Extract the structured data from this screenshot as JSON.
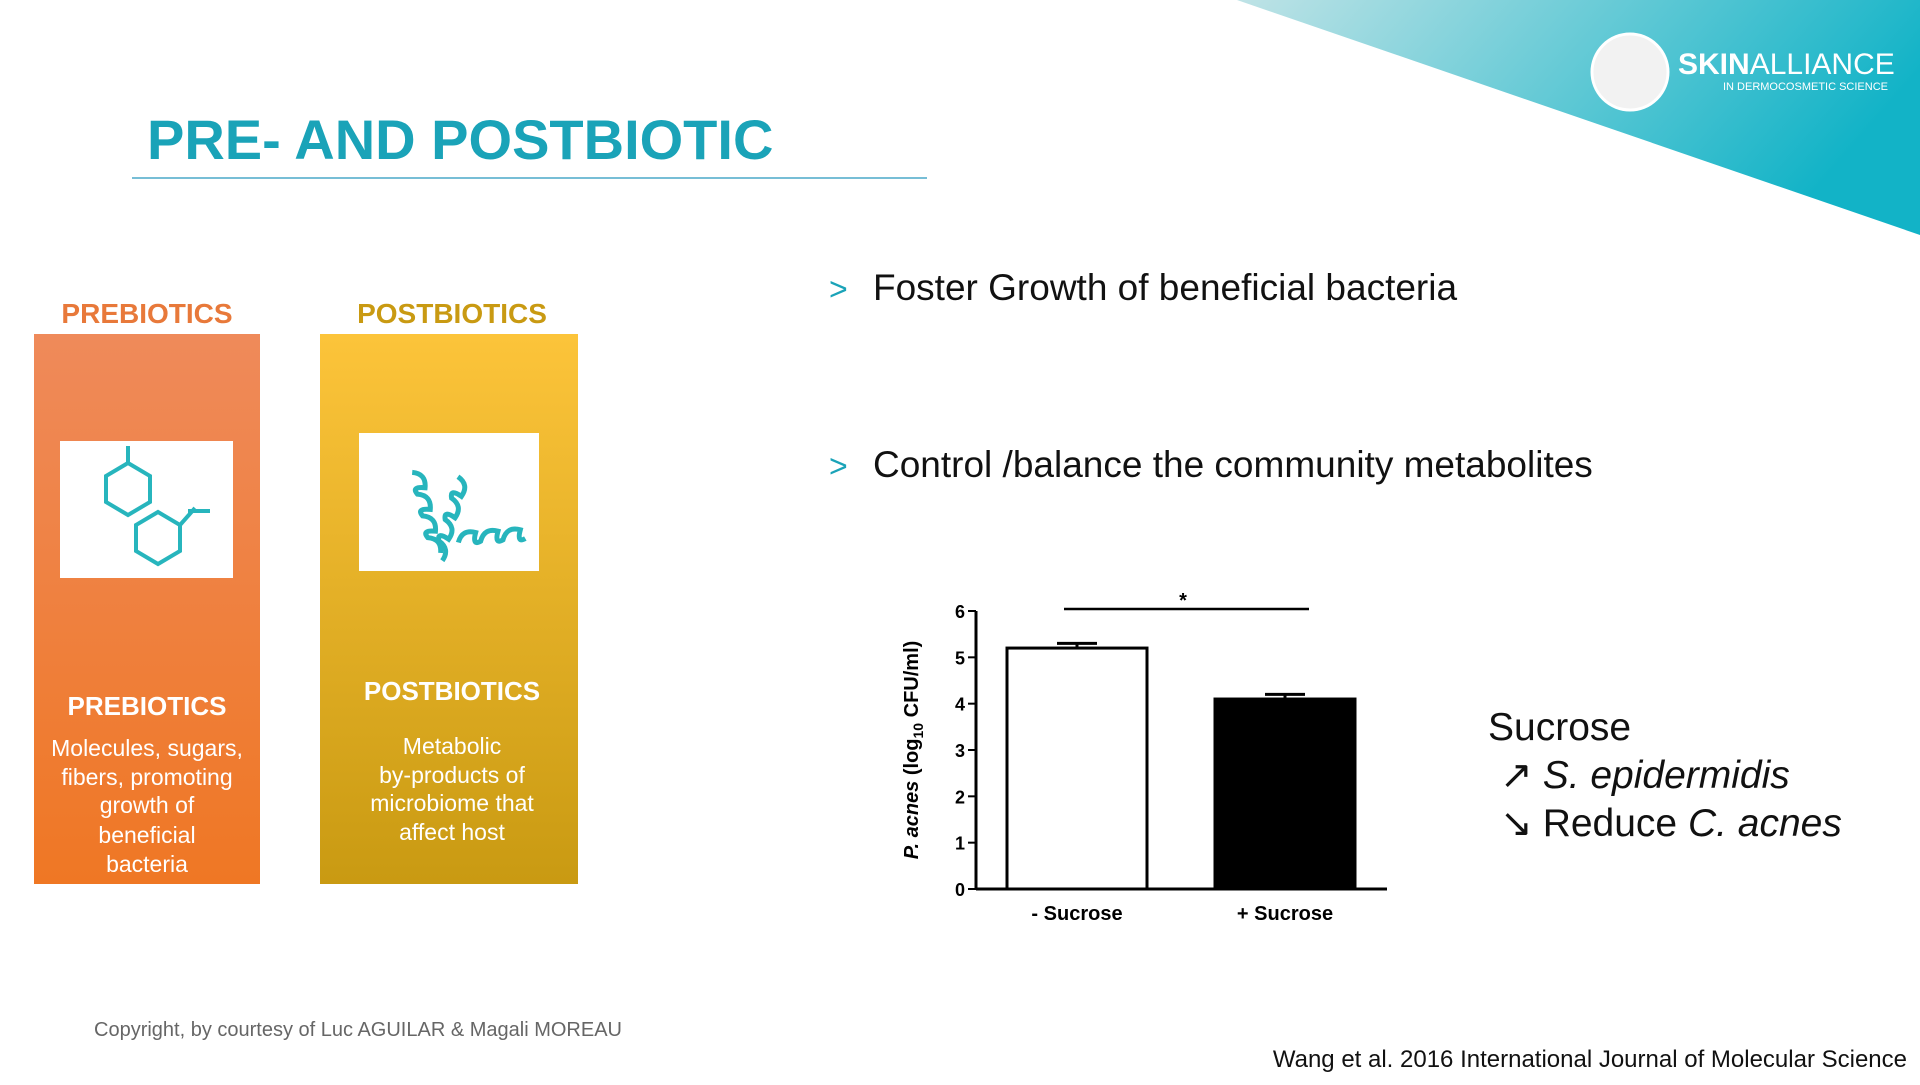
{
  "header": {
    "title": "PRE- AND POSTBIOTIC",
    "logo": {
      "brand_bold": "SKIN",
      "brand_light": "ALLIANCE",
      "tagline": "IN DERMOCOSMETIC SCIENCE"
    }
  },
  "cards": [
    {
      "heading": "PREBIOTICS",
      "title": "PREBIOTICS",
      "body": [
        "Molecules, sugars,",
        "fibers, promoting",
        "growth of",
        "beneficial",
        "bacteria"
      ]
    },
    {
      "heading": "POSTBIOTICS",
      "title": "POSTBIOTICS",
      "body": [
        "Metabolic",
        "by-products of",
        "microbiome that",
        "affect host"
      ]
    }
  ],
  "bullets": [
    {
      "marker": ">",
      "text": "Foster Growth of beneficial bacteria"
    },
    {
      "marker": ">",
      "text": "Control /balance the community metabolites"
    }
  ],
  "chart": {
    "type": "bar",
    "ylabel": [
      "P. acnes",
      " (log",
      "10",
      " CFU/ml)"
    ],
    "categories": [
      "- Sucrose",
      "+ Sucrose"
    ],
    "values": [
      5.2,
      4.1
    ],
    "errors": [
      0.1,
      0.1
    ],
    "colors": [
      "#ffffff",
      "#000000"
    ],
    "ylim": [
      0,
      6
    ],
    "yticks": [
      0,
      1,
      2,
      3,
      4,
      5,
      6
    ],
    "significance": "*"
  },
  "note": {
    "title": "Sucrose",
    "lines": [
      {
        "arrow": "↗",
        "parts": [
          "S. epidermidis"
        ]
      },
      {
        "arrow": "↘",
        "parts": [
          "Reduce ",
          "C. acnes"
        ]
      }
    ]
  },
  "footer": {
    "copyright": "Copyright, by courtesy of Luc AGUILAR & Magali MOREAU",
    "citation": "Wang et al. 2016 International Journal of Molecular Science"
  }
}
